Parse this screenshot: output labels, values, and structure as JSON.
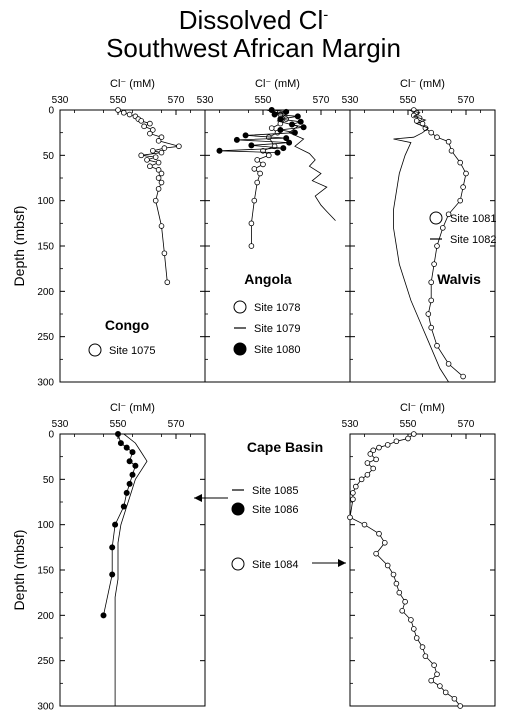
{
  "title": {
    "line1_prefix": "Dissolved Cl",
    "line1_sup": "-",
    "line2": "Southwest African Margin"
  },
  "shared": {
    "xlabel": "Cl⁻ (mM)",
    "ylabel": "Depth (mbsf)",
    "xticks": [
      "530",
      "550",
      "570"
    ],
    "xlim": [
      530,
      580
    ]
  },
  "chart_data": [
    {
      "type": "line",
      "region": "Congo",
      "xlabel": "Cl⁻ (mM)",
      "ylabel": "Depth (mbsf)",
      "xlim": [
        530,
        580
      ],
      "ylim": [
        300,
        0
      ],
      "xticks": [
        530,
        550,
        570
      ],
      "yticks": [
        0,
        50,
        100,
        150,
        200,
        250,
        300
      ],
      "region_label": "Congo",
      "legend": [
        {
          "marker": "open-circle",
          "label": "Site 1075"
        }
      ],
      "series": [
        {
          "name": "Site 1075",
          "marker": "open",
          "x": [
            550,
            552,
            554,
            556,
            557,
            558,
            561,
            559,
            562,
            561,
            565,
            564,
            571,
            566,
            562,
            565,
            558,
            563,
            560,
            564,
            561,
            564,
            565,
            564,
            565,
            564,
            563,
            565,
            566,
            567
          ],
          "y": [
            0,
            3,
            5,
            7,
            10,
            12,
            15,
            18,
            22,
            26,
            30,
            34,
            40,
            42,
            45,
            47,
            50,
            52,
            55,
            58,
            62,
            66,
            70,
            75,
            80,
            87,
            100,
            128,
            158,
            190
          ]
        }
      ]
    },
    {
      "type": "line",
      "region": "Angola",
      "xlabel": "Cl⁻ (mM)",
      "ylabel": "",
      "xlim": [
        530,
        580
      ],
      "ylim": [
        300,
        0
      ],
      "xticks": [
        530,
        550,
        570
      ],
      "yticks": [
        0,
        50,
        100,
        150,
        200,
        250,
        300
      ],
      "region_label": "Angola",
      "legend": [
        {
          "marker": "open-circle",
          "label": "Site 1078"
        },
        {
          "marker": "line",
          "label": "Site 1079"
        },
        {
          "marker": "filled-circle",
          "label": "Site 1080"
        }
      ],
      "series": [
        {
          "name": "Site 1078",
          "marker": "open",
          "x": [
            553,
            556,
            558,
            556,
            553,
            555,
            552,
            554,
            550,
            552,
            548,
            550,
            547,
            549,
            548,
            547,
            546,
            546
          ],
          "y": [
            0,
            5,
            10,
            15,
            20,
            25,
            30,
            40,
            45,
            50,
            55,
            60,
            65,
            70,
            80,
            100,
            125,
            150
          ]
        },
        {
          "name": "Site 1079",
          "marker": "line",
          "x": [
            551,
            558,
            555,
            562,
            559,
            564,
            561,
            566,
            568,
            566,
            570,
            567,
            572,
            568,
            570,
            572,
            575
          ],
          "y": [
            0,
            5,
            12,
            18,
            25,
            32,
            40,
            48,
            55,
            62,
            70,
            78,
            85,
            95,
            105,
            112,
            122
          ]
        },
        {
          "name": "Site 1080",
          "marker": "filled",
          "x": [
            553,
            558,
            554,
            562,
            556,
            563,
            560,
            564,
            556,
            561,
            544,
            558,
            541,
            559,
            546,
            557,
            535,
            555
          ],
          "y": [
            0,
            2,
            5,
            7,
            10,
            13,
            16,
            19,
            22,
            25,
            28,
            31,
            33,
            36,
            39,
            42,
            45,
            47
          ]
        }
      ]
    },
    {
      "type": "line",
      "region": "Walvis",
      "xlabel": "Cl⁻ (mM)",
      "ylabel": "",
      "xlim": [
        530,
        580
      ],
      "ylim": [
        300,
        0
      ],
      "xticks": [
        530,
        550,
        570
      ],
      "yticks": [
        0,
        50,
        100,
        150,
        200,
        250,
        300
      ],
      "region_label": "Walvis",
      "legend": [
        {
          "marker": "open-circle",
          "label": "Site 1081"
        },
        {
          "marker": "line",
          "label": "Site 1082"
        }
      ],
      "series": [
        {
          "name": "Site 1081",
          "marker": "open",
          "x": [
            552,
            553,
            552,
            554,
            553,
            555,
            556,
            558,
            560,
            564,
            565,
            568,
            570,
            569,
            568,
            564,
            562,
            560,
            559,
            558,
            558,
            557,
            558,
            560,
            564,
            569
          ],
          "y": [
            0,
            3,
            6,
            9,
            12,
            15,
            20,
            25,
            30,
            35,
            45,
            58,
            70,
            85,
            100,
            115,
            130,
            150,
            170,
            190,
            210,
            225,
            240,
            260,
            280,
            294
          ]
        },
        {
          "name": "Site 1082",
          "marker": "line",
          "x": [
            550,
            554,
            552,
            556,
            553,
            557,
            555,
            552,
            545,
            551,
            549,
            547,
            546,
            545,
            545,
            546,
            547,
            549,
            551,
            553,
            555,
            557,
            559,
            561,
            564
          ],
          "y": [
            0,
            3,
            7,
            11,
            15,
            20,
            25,
            30,
            32,
            36,
            50,
            70,
            90,
            110,
            130,
            150,
            170,
            190,
            210,
            225,
            240,
            255,
            270,
            285,
            300
          ]
        }
      ]
    },
    {
      "type": "line",
      "region": "Cape Basin",
      "xlabel": "Cl⁻ (mM)",
      "ylabel": "Depth (mbsf)",
      "xlim": [
        530,
        580
      ],
      "ylim": [
        300,
        0
      ],
      "xticks": [
        530,
        550,
        570
      ],
      "yticks": [
        0,
        50,
        100,
        150,
        200,
        250,
        300
      ],
      "region_label": "Cape Basin",
      "legend": [
        {
          "marker": "line",
          "label": "Site 1085"
        },
        {
          "marker": "filled-circle",
          "label": "Site 1086"
        }
      ],
      "series": [
        {
          "name": "Site 1085",
          "marker": "line",
          "x": [
            552,
            556,
            558,
            560,
            558,
            556,
            555,
            554,
            553,
            552,
            551,
            550,
            550,
            550,
            549,
            549,
            549,
            549,
            549,
            549,
            549
          ],
          "y": [
            0,
            10,
            20,
            30,
            40,
            50,
            60,
            70,
            80,
            90,
            100,
            120,
            140,
            160,
            180,
            200,
            220,
            240,
            260,
            280,
            300
          ]
        },
        {
          "name": "Site 1086",
          "marker": "filled",
          "x": [
            550,
            551,
            553,
            555,
            554,
            556,
            555,
            554,
            553,
            552,
            549,
            548,
            548,
            545
          ],
          "y": [
            0,
            10,
            15,
            20,
            30,
            35,
            45,
            55,
            65,
            80,
            100,
            125,
            155,
            200
          ]
        }
      ]
    },
    {
      "type": "line",
      "region": "Cape Basin",
      "xlabel": "Cl⁻ (mM)",
      "ylabel": "",
      "xlim": [
        530,
        580
      ],
      "ylim": [
        300,
        0
      ],
      "xticks": [
        530,
        550,
        570
      ],
      "yticks": [
        0,
        50,
        100,
        150,
        200,
        250,
        300
      ],
      "legend": [
        {
          "marker": "open-circle",
          "label": "Site 1084"
        }
      ],
      "series": [
        {
          "name": "Site 1084",
          "marker": "open",
          "x": [
            552,
            550,
            546,
            543,
            540,
            538,
            537,
            539,
            536,
            538,
            536,
            534,
            532,
            531,
            531,
            530,
            535,
            540,
            542,
            539,
            543,
            545,
            546,
            547,
            549,
            548,
            551,
            552,
            553,
            555,
            556,
            559,
            560,
            558,
            561,
            563,
            566,
            568
          ],
          "y": [
            0,
            5,
            8,
            12,
            15,
            18,
            22,
            28,
            32,
            38,
            45,
            50,
            58,
            65,
            72,
            92,
            100,
            110,
            120,
            132,
            145,
            155,
            165,
            175,
            185,
            195,
            205,
            215,
            225,
            235,
            245,
            255,
            265,
            272,
            278,
            285,
            292,
            300
          ]
        }
      ]
    }
  ]
}
